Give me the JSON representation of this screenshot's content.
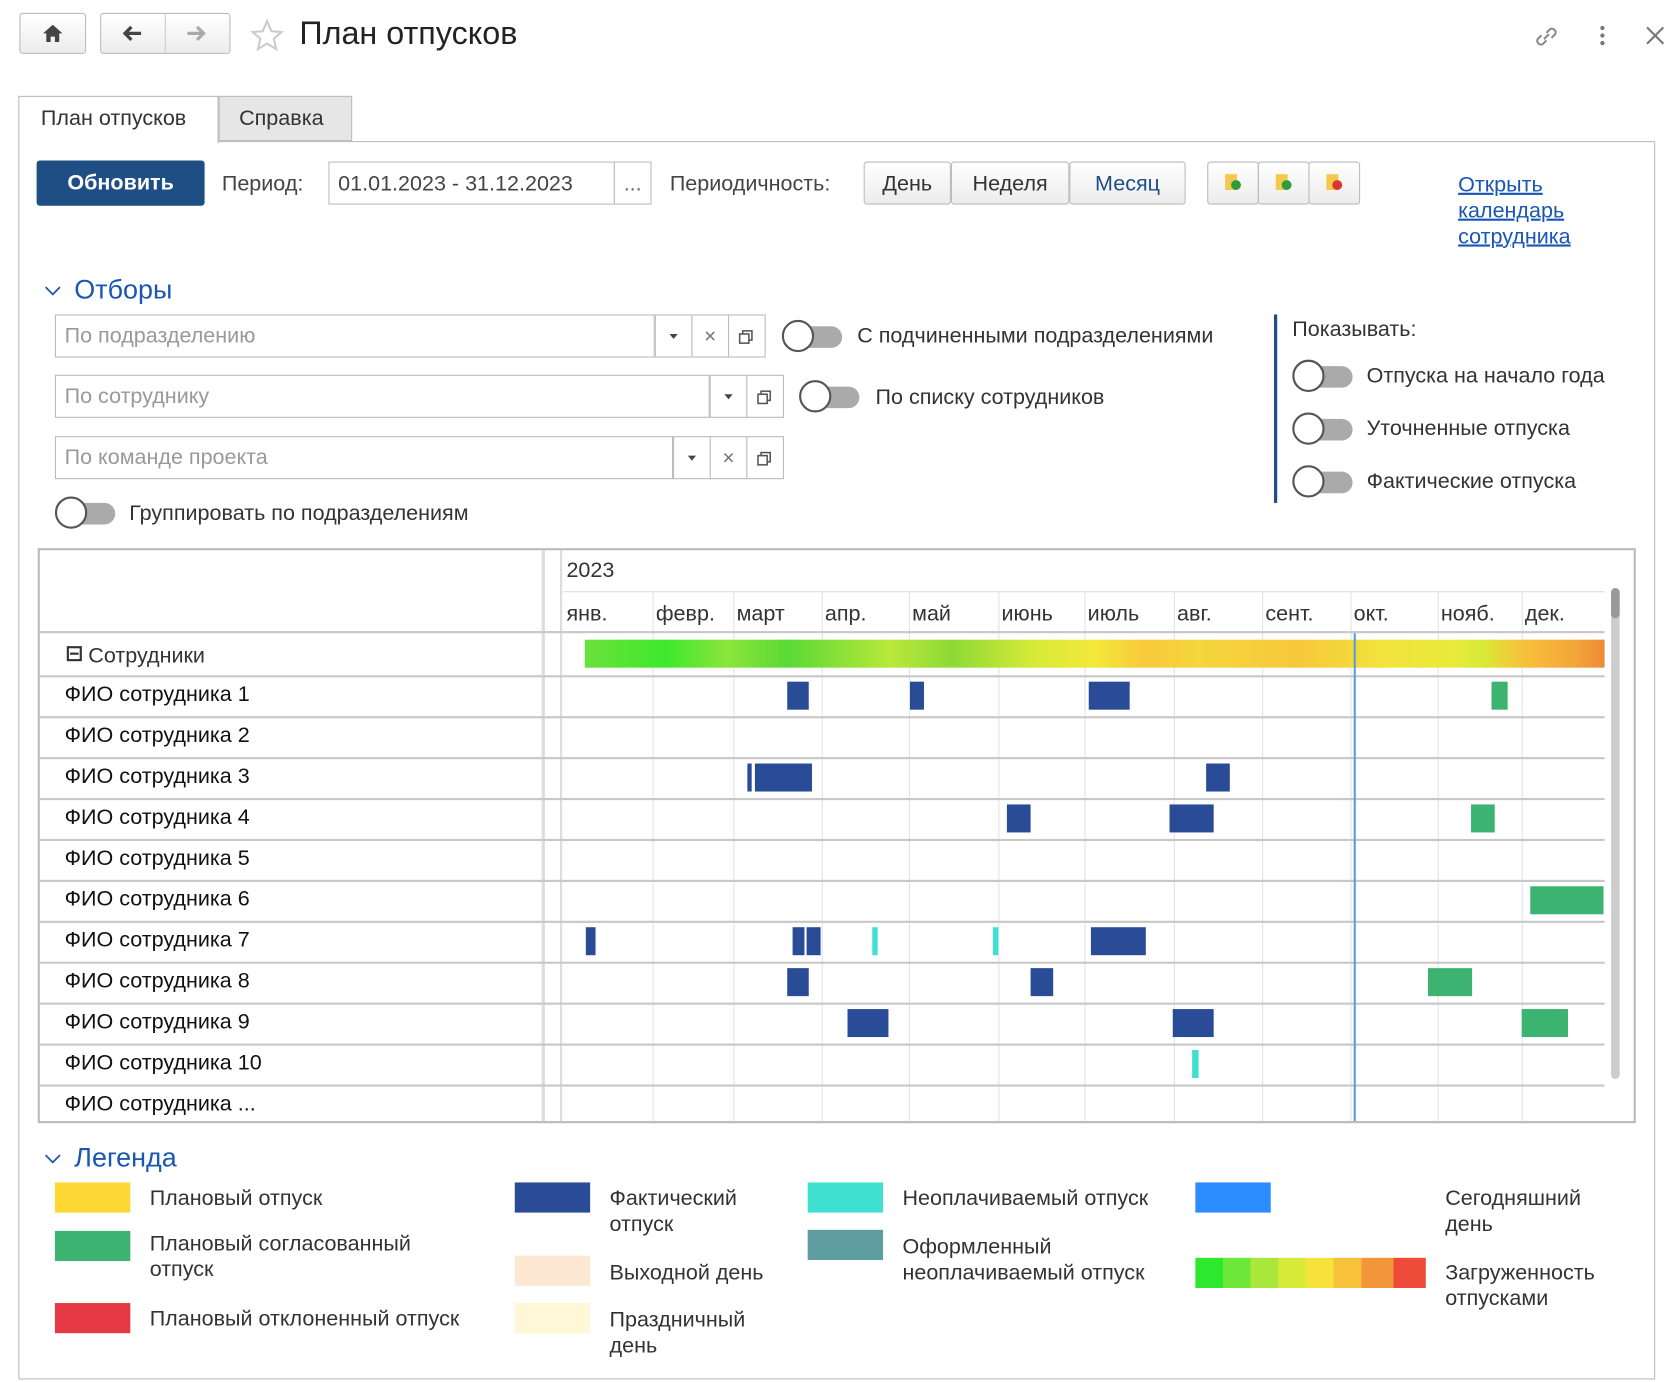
{
  "header": {
    "title": "План отпусков"
  },
  "tabs": [
    "План отпусков",
    "Справка"
  ],
  "toolbar": {
    "refresh": "Обновить",
    "period_label": "Период:",
    "period": "01.01.2023 - 31.12.2023",
    "period_button": "...",
    "periodicity_label": "Периодичность:",
    "periodicity": [
      "День",
      "Неделя",
      "Месяц"
    ],
    "calendar_link": "Открыть календарь сотрудника"
  },
  "filters": {
    "title": "Отборы",
    "fields": [
      "По подразделению",
      "По сотруднику",
      "По команде проекта"
    ],
    "toggles": [
      "С подчиненными подразделениями",
      "По списку сотрудников"
    ],
    "group_toggle": "Группировать по подразделениям",
    "show_label": "Показывать:",
    "show_options": [
      "Отпуска на начало года",
      "Уточненные отпуска",
      "Фактические отпуска"
    ]
  },
  "schedule": {
    "year": "2023",
    "months": [
      "янв.",
      "февр.",
      "март",
      "апр.",
      "май",
      "июнь",
      "июль",
      "авг.",
      "сент.",
      "окт.",
      "нояб.",
      "дек."
    ],
    "group": "Сотрудники",
    "employees": [
      "ФИО сотрудника 1",
      "ФИО сотрудника 2",
      "ФИО сотрудника 3",
      "ФИО сотрудника 4",
      "ФИО сотрудника 5",
      "ФИО сотрудника 6",
      "ФИО сотрудника 7",
      "ФИО сотрудника 8",
      "ФИО сотрудника 9",
      "ФИО сотрудника 10",
      "ФИО сотрудника ..."
    ]
  },
  "legend": {
    "title": "Легенда",
    "items": [
      {
        "label": "Плановый отпуск",
        "color": "#fdd835"
      },
      {
        "label": "Плановый согласованный отпуск",
        "color": "#3cb371"
      },
      {
        "label": "Плановый отклоненный отпуск",
        "color": "#e53946"
      },
      {
        "label": "Фактический отпуск",
        "color": "#2a4b96"
      },
      {
        "label": "Выходной день",
        "color": "#fde9d3"
      },
      {
        "label": "Праздничный день",
        "color": "#fff7d6"
      },
      {
        "label": "Неоплачиваемый отпуск",
        "color": "#40e0d0"
      },
      {
        "label": "Оформленный неоплачиваемый отпуск",
        "color": "#5f9ea0"
      },
      {
        "label": "Сегодняшний день",
        "color": "#2b8cff"
      },
      {
        "label": "Загруженность отпусками"
      }
    ]
  }
}
